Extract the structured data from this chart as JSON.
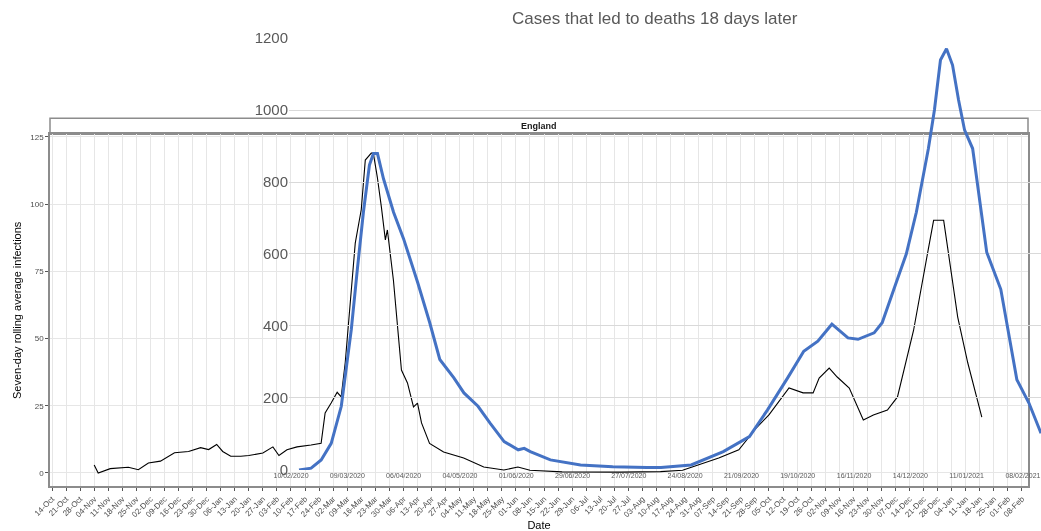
{
  "chart_data": [
    {
      "type": "line",
      "title": "England",
      "xlabel": "Date",
      "ylabel": "Seven-day rolling average infections",
      "grid": true,
      "xlim": [
        "2019-10-13",
        "2021-02-11"
      ],
      "ylim": [
        -5,
        126
      ],
      "yticks": [
        0,
        25,
        50,
        75,
        100,
        125
      ],
      "xticks": [
        {
          "value": "2019-10-14",
          "label": "14-Oct"
        },
        {
          "value": "2019-10-21",
          "label": "21-Oct"
        },
        {
          "value": "2019-10-28",
          "label": "28-Oct"
        },
        {
          "value": "2019-11-04",
          "label": "04-Nov"
        },
        {
          "value": "2019-11-11",
          "label": "11-Nov"
        },
        {
          "value": "2019-11-18",
          "label": "18-Nov"
        },
        {
          "value": "2019-11-25",
          "label": "25-Nov"
        },
        {
          "value": "2019-12-02",
          "label": "02-Dec"
        },
        {
          "value": "2019-12-09",
          "label": "09-Dec"
        },
        {
          "value": "2019-12-16",
          "label": "16-Dec"
        },
        {
          "value": "2019-12-23",
          "label": "23-Dec"
        },
        {
          "value": "2019-12-30",
          "label": "30-Dec"
        },
        {
          "value": "2020-01-06",
          "label": "06-Jan"
        },
        {
          "value": "2020-01-13",
          "label": "13-Jan"
        },
        {
          "value": "2020-01-20",
          "label": "20-Jan"
        },
        {
          "value": "2020-01-27",
          "label": "27-Jan"
        },
        {
          "value": "2020-02-03",
          "label": "03-Feb"
        },
        {
          "value": "2020-02-10",
          "label": "10-Feb"
        },
        {
          "value": "2020-02-17",
          "label": "17-Feb"
        },
        {
          "value": "2020-02-24",
          "label": "24-Feb"
        },
        {
          "value": "2020-03-02",
          "label": "02-Mar"
        },
        {
          "value": "2020-03-09",
          "label": "09-Mar"
        },
        {
          "value": "2020-03-16",
          "label": "16-Mar"
        },
        {
          "value": "2020-03-23",
          "label": "23-Mar"
        },
        {
          "value": "2020-03-30",
          "label": "30-Mar"
        },
        {
          "value": "2020-04-06",
          "label": "06-Apr"
        },
        {
          "value": "2020-04-13",
          "label": "13-Apr"
        },
        {
          "value": "2020-04-20",
          "label": "20-Apr"
        },
        {
          "value": "2020-04-27",
          "label": "27-Apr"
        },
        {
          "value": "2020-05-04",
          "label": "04-May"
        },
        {
          "value": "2020-05-11",
          "label": "11-May"
        },
        {
          "value": "2020-05-18",
          "label": "18-May"
        },
        {
          "value": "2020-05-25",
          "label": "25-May"
        },
        {
          "value": "2020-06-01",
          "label": "01-Jun"
        },
        {
          "value": "2020-06-08",
          "label": "08-Jun"
        },
        {
          "value": "2020-06-15",
          "label": "15-Jun"
        },
        {
          "value": "2020-06-22",
          "label": "22-Jun"
        },
        {
          "value": "2020-06-29",
          "label": "29-Jun"
        },
        {
          "value": "2020-07-06",
          "label": "06-Jul"
        },
        {
          "value": "2020-07-13",
          "label": "13-Jul"
        },
        {
          "value": "2020-07-20",
          "label": "20-Jul"
        },
        {
          "value": "2020-07-27",
          "label": "27-Jul"
        },
        {
          "value": "2020-08-03",
          "label": "03-Aug"
        },
        {
          "value": "2020-08-10",
          "label": "10-Aug"
        },
        {
          "value": "2020-08-17",
          "label": "17-Aug"
        },
        {
          "value": "2020-08-24",
          "label": "24-Aug"
        },
        {
          "value": "2020-08-31",
          "label": "31-Aug"
        },
        {
          "value": "2020-09-07",
          "label": "07-Sep"
        },
        {
          "value": "2020-09-14",
          "label": "14-Sep"
        },
        {
          "value": "2020-09-21",
          "label": "21-Sep"
        },
        {
          "value": "2020-09-28",
          "label": "28-Sep"
        },
        {
          "value": "2020-10-05",
          "label": "05-Oct"
        },
        {
          "value": "2020-10-12",
          "label": "12-Oct"
        },
        {
          "value": "2020-10-19",
          "label": "19-Oct"
        },
        {
          "value": "2020-10-26",
          "label": "26-Oct"
        },
        {
          "value": "2020-11-02",
          "label": "02-Nov"
        },
        {
          "value": "2020-11-09",
          "label": "09-Nov"
        },
        {
          "value": "2020-11-16",
          "label": "16-Nov"
        },
        {
          "value": "2020-11-23",
          "label": "23-Nov"
        },
        {
          "value": "2020-11-30",
          "label": "30-Nov"
        },
        {
          "value": "2020-12-07",
          "label": "07-Dec"
        },
        {
          "value": "2020-12-14",
          "label": "14-Dec"
        },
        {
          "value": "2020-12-21",
          "label": "21-Dec"
        },
        {
          "value": "2020-12-28",
          "label": "28-Dec"
        },
        {
          "value": "2021-01-04",
          "label": "04-Jan"
        },
        {
          "value": "2021-01-11",
          "label": "11-Jan"
        },
        {
          "value": "2021-01-18",
          "label": "18-Jan"
        },
        {
          "value": "2021-01-25",
          "label": "25-Jan"
        },
        {
          "value": "2021-02-01",
          "label": "01-Feb"
        },
        {
          "value": "2021-02-08",
          "label": "08-Feb"
        }
      ],
      "x": [
        "2019-11-04",
        "2019-11-06",
        "2019-11-12",
        "2019-11-21",
        "2019-11-26",
        "2019-12-01",
        "2019-12-07",
        "2019-12-14",
        "2019-12-21",
        "2019-12-27",
        "2019-12-31",
        "2020-01-04",
        "2020-01-07",
        "2020-01-11",
        "2020-01-16",
        "2020-01-20",
        "2020-01-27",
        "2020-02-01",
        "2020-02-04",
        "2020-02-08",
        "2020-02-13",
        "2020-02-20",
        "2020-02-25",
        "2020-02-27",
        "2020-03-01",
        "2020-03-04",
        "2020-03-06",
        "2020-03-08",
        "2020-03-13",
        "2020-03-16",
        "2020-03-18",
        "2020-03-21",
        "2020-03-22",
        "2020-03-24",
        "2020-03-26",
        "2020-03-28",
        "2020-03-29",
        "2020-04-01",
        "2020-04-05",
        "2020-04-08",
        "2020-04-11",
        "2020-04-13",
        "2020-04-15",
        "2020-04-19",
        "2020-04-26",
        "2020-05-06",
        "2020-05-16",
        "2020-05-26",
        "2020-06-02",
        "2020-06-08",
        "2020-06-24",
        "2020-07-23",
        "2020-08-12",
        "2020-08-23",
        "2020-09-10",
        "2020-09-20",
        "2020-09-29",
        "2020-10-05",
        "2020-10-15",
        "2020-10-22",
        "2020-10-27",
        "2020-10-30",
        "2020-11-04",
        "2020-11-08",
        "2020-11-14",
        "2020-11-21",
        "2020-11-26",
        "2020-12-03",
        "2020-12-08",
        "2020-12-16",
        "2020-12-23",
        "2020-12-26",
        "2020-12-28",
        "2020-12-31",
        "2021-01-07",
        "2021-01-12",
        "2021-01-19"
      ],
      "series": [
        {
          "color": "#000000",
          "values": [
            3,
            0,
            1.6,
            2.1,
            1.2,
            3.7,
            4.4,
            7.5,
            8,
            9.4,
            8.7,
            10.6,
            8,
            6.2,
            6.2,
            6.5,
            7.4,
            9.7,
            6.5,
            8.6,
            9.7,
            10.4,
            11,
            22.3,
            26,
            30,
            28.3,
            41,
            85.5,
            98,
            116.4,
            119,
            119,
            110,
            99,
            86.7,
            90.4,
            71.8,
            38.3,
            33.5,
            24.6,
            26,
            18.6,
            11,
            7.8,
            5.6,
            2.2,
            1.1,
            2.2,
            1,
            0.4,
            0.3,
            0.5,
            1,
            5.6,
            8.6,
            17,
            21.6,
            31.6,
            29.8,
            29.8,
            35.3,
            39,
            35.7,
            31.6,
            19.7,
            21.6,
            23.4,
            28.3,
            53,
            81.8,
            94,
            94,
            94,
            58,
            41,
            20.8
          ]
        }
      ]
    },
    {
      "type": "line",
      "title": "Cases that led to deaths 18 days later",
      "grid": "y",
      "xlim": [
        "2020-02-09",
        "2021-02-17"
      ],
      "ylim": [
        0,
        1200
      ],
      "yticks": [
        0,
        200,
        400,
        600,
        800,
        1000,
        1200
      ],
      "xticks": [
        {
          "value": "2020-02-10",
          "label": "10/02/2020"
        },
        {
          "value": "2020-03-09",
          "label": "09/03/2020"
        },
        {
          "value": "2020-04-06",
          "label": "06/04/2020"
        },
        {
          "value": "2020-05-04",
          "label": "04/05/2020"
        },
        {
          "value": "2020-06-01",
          "label": "01/06/2020"
        },
        {
          "value": "2020-06-29",
          "label": "29/06/2020"
        },
        {
          "value": "2020-07-27",
          "label": "27/07/2020"
        },
        {
          "value": "2020-08-24",
          "label": "24/08/2020"
        },
        {
          "value": "2020-09-21",
          "label": "21/09/2020"
        },
        {
          "value": "2020-10-19",
          "label": "19/10/2020"
        },
        {
          "value": "2020-11-16",
          "label": "16/11/2020"
        },
        {
          "value": "2020-12-14",
          "label": "14/12/2020"
        },
        {
          "value": "2021-01-11",
          "label": "11/01/2021"
        },
        {
          "value": "2021-02-08",
          "label": "08/02/2021"
        }
      ],
      "x": [
        "2020-02-14",
        "2020-02-20",
        "2020-02-25",
        "2020-03-01",
        "2020-03-06",
        "2020-03-11",
        "2020-03-14",
        "2020-03-17",
        "2020-03-20",
        "2020-03-22",
        "2020-03-24",
        "2020-03-27",
        "2020-04-01",
        "2020-04-06",
        "2020-04-13",
        "2020-04-19",
        "2020-04-24",
        "2020-05-01",
        "2020-05-06",
        "2020-05-13",
        "2020-05-19",
        "2020-05-26",
        "2020-06-02",
        "2020-06-05",
        "2020-06-08",
        "2020-06-18",
        "2020-07-03",
        "2020-07-19",
        "2020-08-05",
        "2020-08-12",
        "2020-08-27",
        "2020-09-12",
        "2020-09-25",
        "2020-10-04",
        "2020-10-14",
        "2020-10-22",
        "2020-10-29",
        "2020-11-05",
        "2020-11-13",
        "2020-11-18",
        "2020-11-26",
        "2020-11-30",
        "2020-12-07",
        "2020-12-12",
        "2020-12-17",
        "2020-12-23",
        "2020-12-26",
        "2020-12-29",
        "2021-01-01",
        "2021-01-04",
        "2021-01-07",
        "2021-01-10",
        "2021-01-14",
        "2021-01-21",
        "2021-01-28",
        "2021-02-05",
        "2021-02-11",
        "2021-02-17"
      ],
      "series": [
        {
          "color": "#4472c4",
          "values": [
            0,
            5,
            28,
            74,
            177,
            391,
            558,
            716,
            847,
            879,
            879,
            809,
            716,
            642,
            521,
            409,
            307,
            256,
            214,
            177,
            130,
            79,
            56,
            60,
            51,
            28,
            14,
            9,
            7,
            7,
            14,
            51,
            93,
            167,
            256,
            330,
            358,
            405,
            367,
            363,
            381,
            409,
            521,
            600,
            716,
            893,
            1000,
            1139,
            1170,
            1125,
            1028,
            944,
            893,
            605,
            502,
            251,
            186,
            102
          ]
        }
      ]
    }
  ]
}
